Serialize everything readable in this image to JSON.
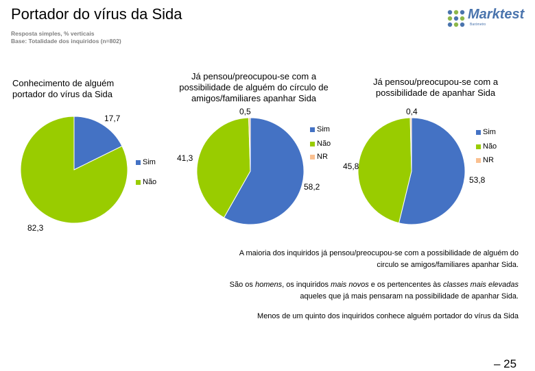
{
  "header": {
    "title": "Portador do vírus da Sida",
    "line1": "Resposta simples, % verticais",
    "line2": "Base: Totalidade dos inquiridos (n=802)"
  },
  "logo": {
    "name": "Marktest",
    "sub": "Barómetro",
    "dot_colors": [
      "#4a74ad",
      "#8db84a",
      "#4a74ad",
      "#8db84a",
      "#4a74ad",
      "#8db84a",
      "#4a74ad",
      "#8db84a",
      "#4a74ad"
    ]
  },
  "colors": {
    "sim": "#4472C4",
    "nao": "#99CC00",
    "nr": "#FAC090"
  },
  "chart_data": [
    {
      "type": "pie",
      "title": "Conhecimento de alguém portador do vírus da Sida",
      "labels": [
        "Sim",
        "Não"
      ],
      "values": [
        17.7,
        82.3
      ],
      "value_labels": [
        "17,7",
        "82,3"
      ],
      "legend": [
        "Sim",
        "Não"
      ]
    },
    {
      "type": "pie",
      "title": "Já pensou/preocupou-se com a possibilidade de alguém do círculo de amigos/familiares apanhar Sida",
      "labels": [
        "Sim",
        "Não",
        "NR"
      ],
      "values": [
        58.2,
        41.3,
        0.5
      ],
      "value_labels": [
        "58,2",
        "41,3",
        "0,5"
      ],
      "legend": [
        "Sim",
        "Não",
        "NR"
      ]
    },
    {
      "type": "pie",
      "title": "Já pensou/preocupou-se com a possibilidade de apanhar Sida",
      "labels": [
        "Sim",
        "Não",
        "NR"
      ],
      "values": [
        53.8,
        45.8,
        0.4
      ],
      "value_labels": [
        "53,8",
        "45,8",
        "0,4"
      ],
      "legend": [
        "Sim",
        "Não",
        "NR"
      ]
    }
  ],
  "notes": {
    "n1": "A maioria dos inquiridos já pensou/preocupou-se com a possibilidade de alguém do circulo se amigos/familiares apanhar Sida.",
    "n2_a": "São os ",
    "n2_b": "homens",
    "n2_c": ", os inquiridos ",
    "n2_d": "mais novos",
    "n2_e": " e os pertencentes às ",
    "n2_f": "classes mais elevadas",
    "n2_g": " aqueles que já mais pensaram na possibilidade de apanhar Sida.",
    "n3": "Menos de um quinto dos inquiridos conhece alguém portador do vírus da Sida"
  },
  "page": "– 25"
}
